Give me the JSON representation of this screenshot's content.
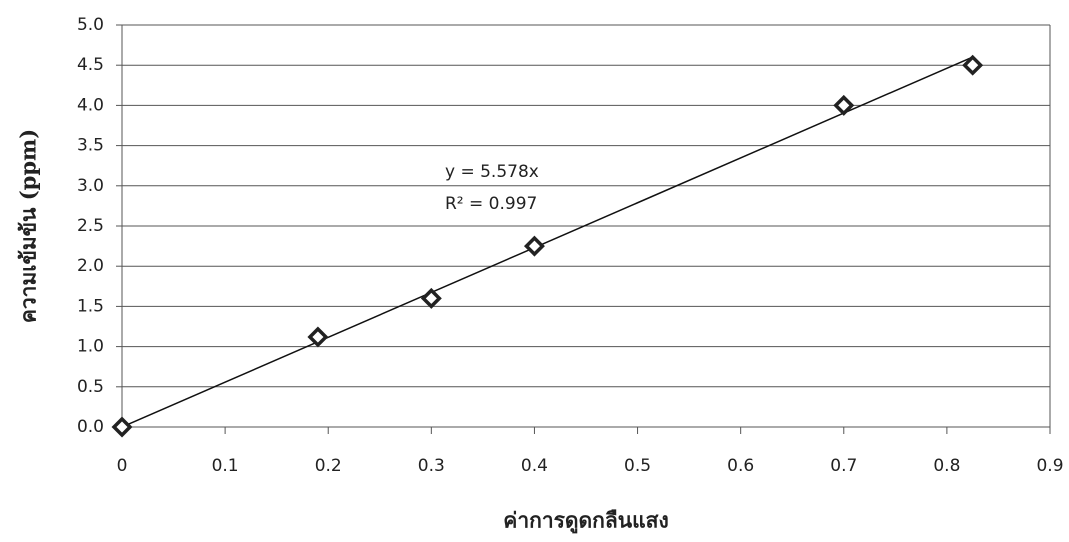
{
  "chart_data": {
    "type": "scatter",
    "x_label": "ค่าการดูดกลืนแสง",
    "y_label": "ความเข้มข้น (ppm)",
    "series": [
      {
        "color": "#222222",
        "x": [
          0,
          0.19,
          0.3,
          0.4,
          0.7,
          0.825
        ],
        "values": [
          0,
          1.12,
          1.6,
          2.25,
          4.0,
          4.5
        ]
      }
    ],
    "trendline": {
      "slope": 5.578,
      "label": "y = 5.578x",
      "r2_label": "R² = 0.997"
    },
    "xlim": [
      0,
      0.9
    ],
    "xticks": [
      0,
      0.1,
      0.2,
      0.3,
      0.4,
      0.5,
      0.6,
      0.7,
      0.8,
      0.9
    ],
    "ylim": [
      0,
      5
    ],
    "yticks": [
      {
        "value": 0,
        "label": "0.0"
      },
      0.5,
      {
        "value": 1,
        "label": "1.0"
      },
      1.5,
      {
        "value": 2,
        "label": "2.0"
      },
      2.5,
      {
        "value": 3,
        "label": "3.0"
      },
      3.5,
      {
        "value": 4,
        "label": "4.0"
      },
      4.5,
      {
        "value": 5,
        "label": "5.0"
      }
    ],
    "grid": true
  }
}
